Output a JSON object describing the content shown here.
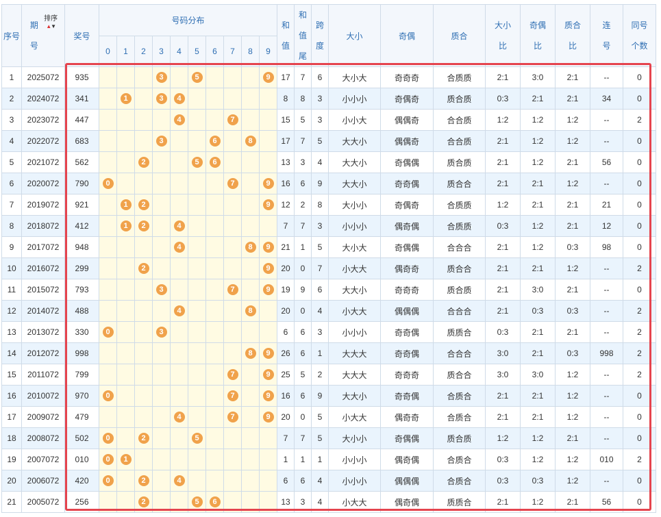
{
  "header": {
    "seq": "序号",
    "period": "期号",
    "sort": "排序",
    "sort_up": "▲",
    "sort_down": "▼",
    "prize": "奖号",
    "dist": "号码分布",
    "digits": [
      "0",
      "1",
      "2",
      "3",
      "4",
      "5",
      "6",
      "7",
      "8",
      "9"
    ],
    "sum": "和值",
    "sum_tail": "和值尾",
    "span": "跨度",
    "size": "大小",
    "parity": "奇偶",
    "prime": "质合",
    "size_ratio": "大小比",
    "parity_ratio": "奇偶比",
    "prime_ratio": "质合比",
    "consecutive": "连号",
    "same_count": "同号个数"
  },
  "rows": [
    {
      "seq": "1",
      "period": "2025072",
      "prize": "935",
      "dist": [
        "",
        "",
        "",
        "3",
        "",
        "5",
        "",
        "",
        "",
        "9"
      ],
      "sum": "17",
      "tail": "7",
      "span": "6",
      "size": "大小大",
      "parity": "奇奇奇",
      "prime": "合质质",
      "sr": "2:1",
      "pr": "3:0",
      "qr": "2:1",
      "consec": "--",
      "same": "0"
    },
    {
      "seq": "2",
      "period": "2024072",
      "prize": "341",
      "dist": [
        "",
        "1",
        "",
        "3",
        "4",
        "",
        "",
        "",
        "",
        ""
      ],
      "sum": "8",
      "tail": "8",
      "span": "3",
      "size": "小小小",
      "parity": "奇偶奇",
      "prime": "质合质",
      "sr": "0:3",
      "pr": "2:1",
      "qr": "2:1",
      "consec": "34",
      "same": "0"
    },
    {
      "seq": "3",
      "period": "2023072",
      "prize": "447",
      "dist": [
        "",
        "",
        "",
        "",
        "4",
        "",
        "",
        "7",
        "",
        ""
      ],
      "sum": "15",
      "tail": "5",
      "span": "3",
      "size": "小小大",
      "parity": "偶偶奇",
      "prime": "合合质",
      "sr": "1:2",
      "pr": "1:2",
      "qr": "1:2",
      "consec": "--",
      "same": "2"
    },
    {
      "seq": "4",
      "period": "2022072",
      "prize": "683",
      "dist": [
        "",
        "",
        "",
        "3",
        "",
        "",
        "6",
        "",
        "8",
        ""
      ],
      "sum": "17",
      "tail": "7",
      "span": "5",
      "size": "大大小",
      "parity": "偶偶奇",
      "prime": "合合质",
      "sr": "2:1",
      "pr": "1:2",
      "qr": "1:2",
      "consec": "--",
      "same": "0"
    },
    {
      "seq": "5",
      "period": "2021072",
      "prize": "562",
      "dist": [
        "",
        "",
        "2",
        "",
        "",
        "5",
        "6",
        "",
        "",
        ""
      ],
      "sum": "13",
      "tail": "3",
      "span": "4",
      "size": "大大小",
      "parity": "奇偶偶",
      "prime": "质合质",
      "sr": "2:1",
      "pr": "1:2",
      "qr": "2:1",
      "consec": "56",
      "same": "0"
    },
    {
      "seq": "6",
      "period": "2020072",
      "prize": "790",
      "dist": [
        "0",
        "",
        "",
        "",
        "",
        "",
        "",
        "7",
        "",
        "9"
      ],
      "sum": "16",
      "tail": "6",
      "span": "9",
      "size": "大大小",
      "parity": "奇奇偶",
      "prime": "质合合",
      "sr": "2:1",
      "pr": "2:1",
      "qr": "1:2",
      "consec": "--",
      "same": "0"
    },
    {
      "seq": "7",
      "period": "2019072",
      "prize": "921",
      "dist": [
        "",
        "1",
        "2",
        "",
        "",
        "",
        "",
        "",
        "",
        "9"
      ],
      "sum": "12",
      "tail": "2",
      "span": "8",
      "size": "大小小",
      "parity": "奇偶奇",
      "prime": "合质质",
      "sr": "1:2",
      "pr": "2:1",
      "qr": "2:1",
      "consec": "21",
      "same": "0"
    },
    {
      "seq": "8",
      "period": "2018072",
      "prize": "412",
      "dist": [
        "",
        "1",
        "2",
        "",
        "4",
        "",
        "",
        "",
        "",
        ""
      ],
      "sum": "7",
      "tail": "7",
      "span": "3",
      "size": "小小小",
      "parity": "偶奇偶",
      "prime": "合质质",
      "sr": "0:3",
      "pr": "1:2",
      "qr": "2:1",
      "consec": "12",
      "same": "0"
    },
    {
      "seq": "9",
      "period": "2017072",
      "prize": "948",
      "dist": [
        "",
        "",
        "",
        "",
        "4",
        "",
        "",
        "",
        "8",
        "9"
      ],
      "sum": "21",
      "tail": "1",
      "span": "5",
      "size": "大小大",
      "parity": "奇偶偶",
      "prime": "合合合",
      "sr": "2:1",
      "pr": "1:2",
      "qr": "0:3",
      "consec": "98",
      "same": "0"
    },
    {
      "seq": "10",
      "period": "2016072",
      "prize": "299",
      "dist": [
        "",
        "",
        "2",
        "",
        "",
        "",
        "",
        "",
        "",
        "9"
      ],
      "sum": "20",
      "tail": "0",
      "span": "7",
      "size": "小大大",
      "parity": "偶奇奇",
      "prime": "质合合",
      "sr": "2:1",
      "pr": "2:1",
      "qr": "1:2",
      "consec": "--",
      "same": "2"
    },
    {
      "seq": "11",
      "period": "2015072",
      "prize": "793",
      "dist": [
        "",
        "",
        "",
        "3",
        "",
        "",
        "",
        "7",
        "",
        "9"
      ],
      "sum": "19",
      "tail": "9",
      "span": "6",
      "size": "大大小",
      "parity": "奇奇奇",
      "prime": "质合质",
      "sr": "2:1",
      "pr": "3:0",
      "qr": "2:1",
      "consec": "--",
      "same": "0"
    },
    {
      "seq": "12",
      "period": "2014072",
      "prize": "488",
      "dist": [
        "",
        "",
        "",
        "",
        "4",
        "",
        "",
        "",
        "8",
        ""
      ],
      "sum": "20",
      "tail": "0",
      "span": "4",
      "size": "小大大",
      "parity": "偶偶偶",
      "prime": "合合合",
      "sr": "2:1",
      "pr": "0:3",
      "qr": "0:3",
      "consec": "--",
      "same": "2"
    },
    {
      "seq": "13",
      "period": "2013072",
      "prize": "330",
      "dist": [
        "0",
        "",
        "",
        "3",
        "",
        "",
        "",
        "",
        "",
        ""
      ],
      "sum": "6",
      "tail": "6",
      "span": "3",
      "size": "小小小",
      "parity": "奇奇偶",
      "prime": "质质合",
      "sr": "0:3",
      "pr": "2:1",
      "qr": "2:1",
      "consec": "--",
      "same": "2"
    },
    {
      "seq": "14",
      "period": "2012072",
      "prize": "998",
      "dist": [
        "",
        "",
        "",
        "",
        "",
        "",
        "",
        "",
        "8",
        "9"
      ],
      "sum": "26",
      "tail": "6",
      "span": "1",
      "size": "大大大",
      "parity": "奇奇偶",
      "prime": "合合合",
      "sr": "3:0",
      "pr": "2:1",
      "qr": "0:3",
      "consec": "998",
      "same": "2"
    },
    {
      "seq": "15",
      "period": "2011072",
      "prize": "799",
      "dist": [
        "",
        "",
        "",
        "",
        "",
        "",
        "",
        "7",
        "",
        "9"
      ],
      "sum": "25",
      "tail": "5",
      "span": "2",
      "size": "大大大",
      "parity": "奇奇奇",
      "prime": "质合合",
      "sr": "3:0",
      "pr": "3:0",
      "qr": "1:2",
      "consec": "--",
      "same": "2"
    },
    {
      "seq": "16",
      "period": "2010072",
      "prize": "970",
      "dist": [
        "0",
        "",
        "",
        "",
        "",
        "",
        "",
        "7",
        "",
        "9"
      ],
      "sum": "16",
      "tail": "6",
      "span": "9",
      "size": "大大小",
      "parity": "奇奇偶",
      "prime": "合质合",
      "sr": "2:1",
      "pr": "2:1",
      "qr": "1:2",
      "consec": "--",
      "same": "0"
    },
    {
      "seq": "17",
      "period": "2009072",
      "prize": "479",
      "dist": [
        "",
        "",
        "",
        "",
        "4",
        "",
        "",
        "7",
        "",
        "9"
      ],
      "sum": "20",
      "tail": "0",
      "span": "5",
      "size": "小大大",
      "parity": "偶奇奇",
      "prime": "合质合",
      "sr": "2:1",
      "pr": "2:1",
      "qr": "1:2",
      "consec": "--",
      "same": "0"
    },
    {
      "seq": "18",
      "period": "2008072",
      "prize": "502",
      "dist": [
        "0",
        "",
        "2",
        "",
        "",
        "5",
        "",
        "",
        "",
        ""
      ],
      "sum": "7",
      "tail": "7",
      "span": "5",
      "size": "大小小",
      "parity": "奇偶偶",
      "prime": "质合质",
      "sr": "1:2",
      "pr": "1:2",
      "qr": "2:1",
      "consec": "--",
      "same": "0"
    },
    {
      "seq": "19",
      "period": "2007072",
      "prize": "010",
      "dist": [
        "0",
        "1",
        "",
        "",
        "",
        "",
        "",
        "",
        "",
        ""
      ],
      "sum": "1",
      "tail": "1",
      "span": "1",
      "size": "小小小",
      "parity": "偶奇偶",
      "prime": "合质合",
      "sr": "0:3",
      "pr": "1:2",
      "qr": "1:2",
      "consec": "010",
      "same": "2"
    },
    {
      "seq": "20",
      "period": "2006072",
      "prize": "420",
      "dist": [
        "0",
        "",
        "2",
        "",
        "4",
        "",
        "",
        "",
        "",
        ""
      ],
      "sum": "6",
      "tail": "6",
      "span": "4",
      "size": "小小小",
      "parity": "偶偶偶",
      "prime": "合质合",
      "sr": "0:3",
      "pr": "0:3",
      "qr": "1:2",
      "consec": "--",
      "same": "0"
    },
    {
      "seq": "21",
      "period": "2005072",
      "prize": "256",
      "dist": [
        "",
        "",
        "2",
        "",
        "",
        "5",
        "6",
        "",
        "",
        ""
      ],
      "sum": "13",
      "tail": "3",
      "span": "4",
      "size": "小大大",
      "parity": "偶奇偶",
      "prime": "质质合",
      "sr": "2:1",
      "pr": "1:2",
      "qr": "2:1",
      "consec": "56",
      "same": "0"
    }
  ],
  "colors": {
    "ball": "#f0a24b",
    "highlight": "#e5444e",
    "header_text": "#2f6fb3",
    "row_alt": "#eaf4fd",
    "dist_bg": "#fffbe3"
  }
}
